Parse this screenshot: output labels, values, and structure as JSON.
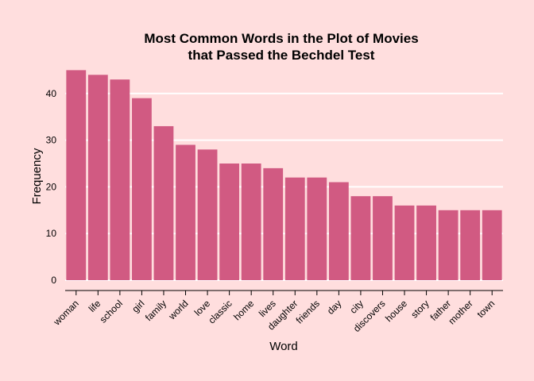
{
  "chart_data": {
    "type": "bar",
    "title": "Most Common Words in the Plot of Movies",
    "subtitle": "that Passed the Bechdel Test",
    "xlabel": "Word",
    "ylabel": "Frequency",
    "categories": [
      "woman",
      "life",
      "school",
      "girl",
      "family",
      "world",
      "love",
      "classic",
      "home",
      "lives",
      "daughter",
      "friends",
      "day",
      "city",
      "discovers",
      "house",
      "story",
      "father",
      "mother",
      "town"
    ],
    "values": [
      45,
      44,
      43,
      39,
      33,
      29,
      28,
      25,
      25,
      24,
      22,
      22,
      21,
      18,
      18,
      16,
      16,
      15,
      15,
      15
    ],
    "yticks": [
      0,
      10,
      20,
      30,
      40
    ],
    "ylim": [
      0,
      47
    ],
    "grid": "horizontal",
    "bar_color": "#D15A82",
    "background_color": "#FFDEDE",
    "grid_color": "#FFFFFF"
  }
}
